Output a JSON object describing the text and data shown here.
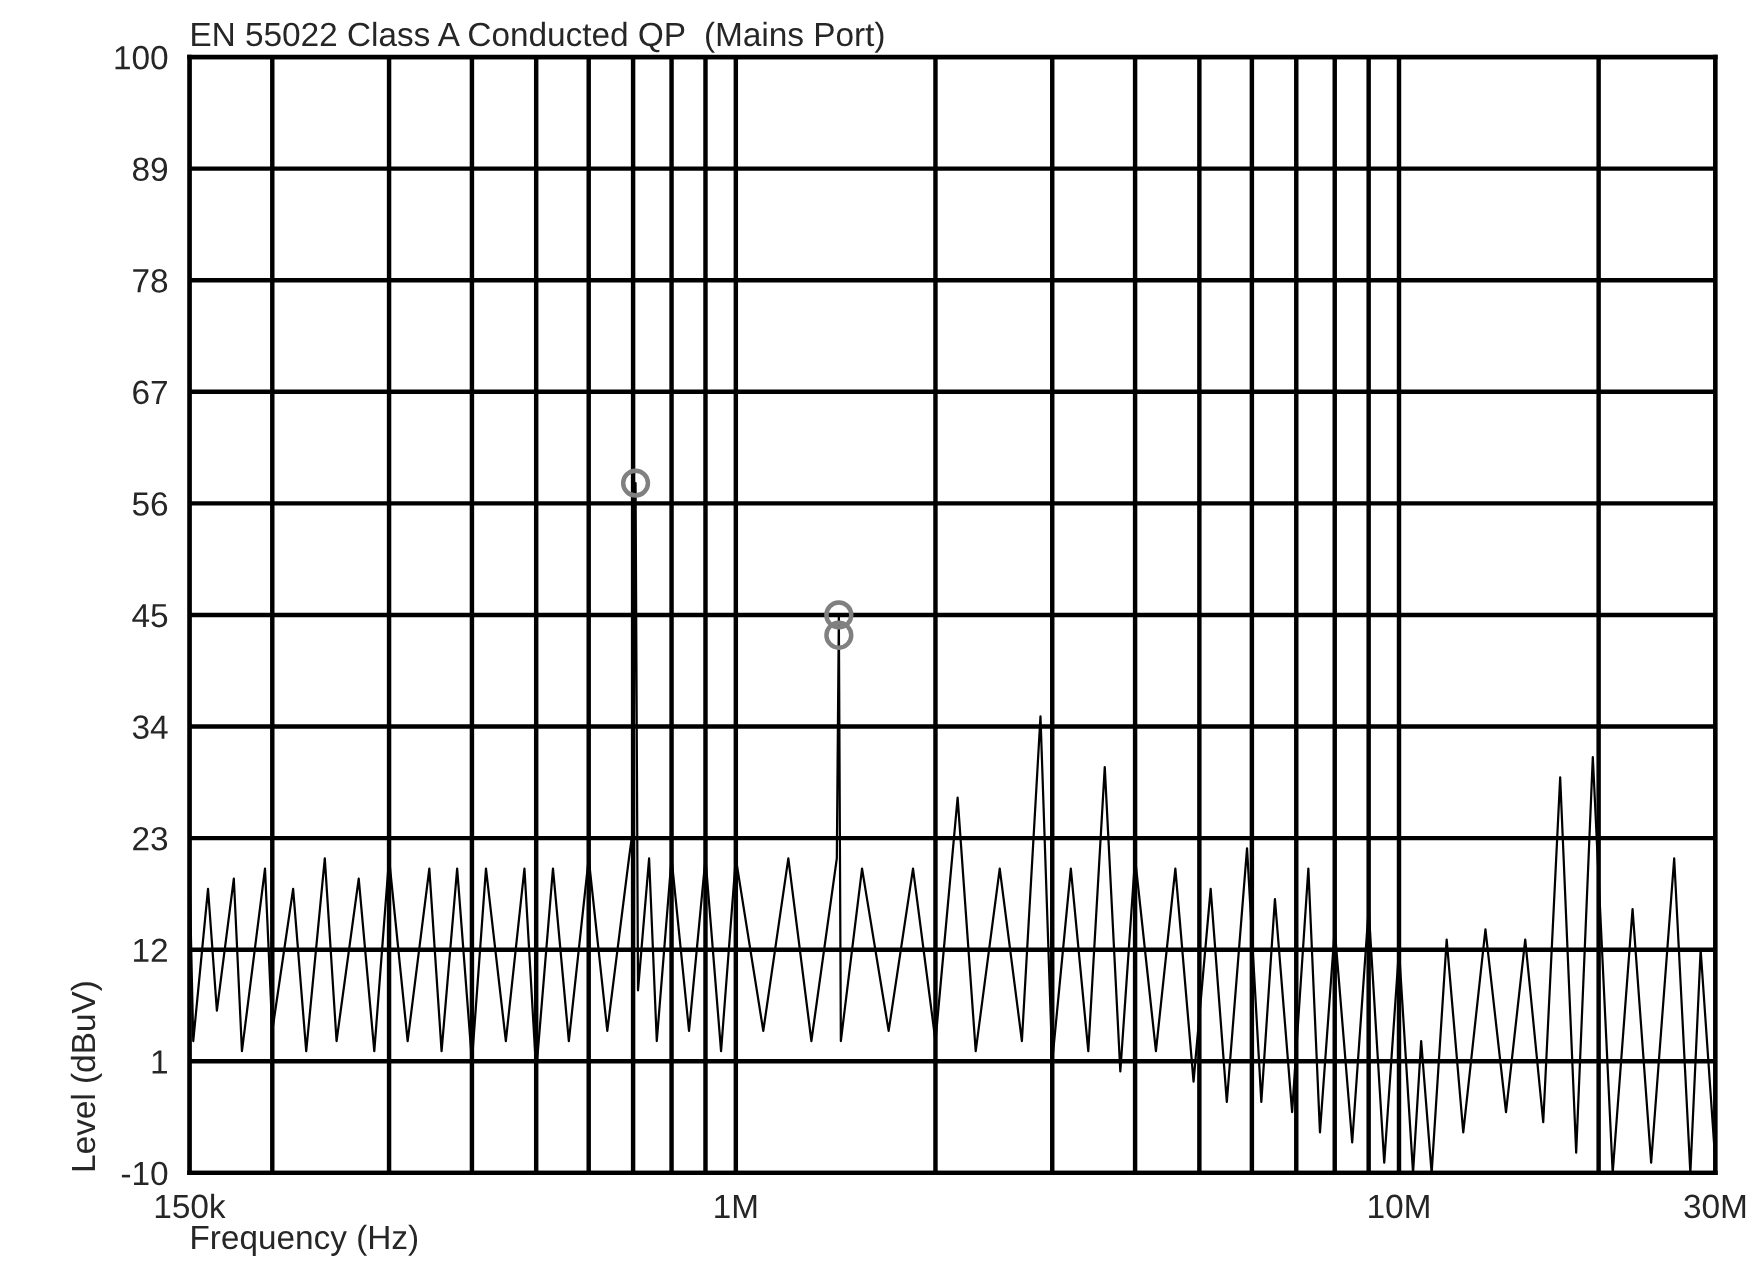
{
  "chart_data": {
    "type": "line",
    "title": "EN 55022 Class A Conducted QP  (Mains Port)",
    "xlabel": "Frequency (Hz)",
    "ylabel": "Level (dBuV)",
    "log": "x",
    "grid": true,
    "xlim": [
      150000,
      30000000
    ],
    "ylim": [
      -10,
      100
    ],
    "xticks": [
      {
        "value": 150000,
        "label": "150k"
      },
      {
        "value": 200000,
        "label": null
      },
      {
        "value": 300000,
        "label": null
      },
      {
        "value": 400000,
        "label": null
      },
      {
        "value": 500000,
        "label": null
      },
      {
        "value": 600000,
        "label": null
      },
      {
        "value": 700000,
        "label": null
      },
      {
        "value": 800000,
        "label": null
      },
      {
        "value": 900000,
        "label": null
      },
      {
        "value": 1000000,
        "label": "1M"
      },
      {
        "value": 2000000,
        "label": null
      },
      {
        "value": 3000000,
        "label": null
      },
      {
        "value": 4000000,
        "label": null
      },
      {
        "value": 5000000,
        "label": null
      },
      {
        "value": 6000000,
        "label": null
      },
      {
        "value": 7000000,
        "label": null
      },
      {
        "value": 8000000,
        "label": null
      },
      {
        "value": 9000000,
        "label": null
      },
      {
        "value": 10000000,
        "label": "10M"
      },
      {
        "value": 20000000,
        "label": null
      },
      {
        "value": 30000000,
        "label": "30M"
      }
    ],
    "yticks": [
      -10,
      1,
      12,
      23,
      34,
      45,
      56,
      67,
      78,
      89,
      100
    ],
    "series": [
      {
        "color": "#000000",
        "marker": "none",
        "line_style": "solid",
        "x": [
          150000,
          152000,
          160000,
          165000,
          175000,
          180000,
          195000,
          200000,
          215000,
          225000,
          240000,
          250000,
          270000,
          285000,
          300000,
          320000,
          345000,
          360000,
          380000,
          400000,
          420000,
          450000,
          480000,
          500000,
          530000,
          560000,
          600000,
          640000,
          690000,
          700000,
          706000,
          712000,
          740000,
          760000,
          800000,
          850000,
          900000,
          950000,
          1000000,
          1100000,
          1200000,
          1300000,
          1420000,
          1430000,
          1440000,
          1550000,
          1700000,
          1850000,
          2000000,
          2160000,
          2300000,
          2500000,
          2700000,
          2880000,
          3000000,
          3200000,
          3400000,
          3600000,
          3800000,
          4000000,
          4300000,
          4600000,
          4900000,
          5200000,
          5500000,
          5900000,
          6200000,
          6500000,
          6900000,
          7300000,
          7600000,
          8000000,
          8500000,
          9000000,
          9500000,
          10000000,
          10500000,
          10800000,
          11200000,
          11800000,
          12500000,
          13500000,
          14500000,
          15500000,
          16500000,
          17500000,
          18500000,
          19600000,
          21000000,
          22500000,
          24000000,
          26000000,
          27500000,
          28500000,
          30000000
        ],
        "values": [
          20,
          3,
          18,
          6,
          19,
          2,
          20,
          4,
          18,
          2,
          21,
          3,
          19,
          2,
          21,
          3,
          20,
          2,
          20,
          1,
          20,
          3,
          20,
          0,
          20,
          3,
          21,
          4,
          21,
          24,
          58,
          8,
          21,
          3,
          21,
          4,
          21,
          2,
          21,
          4,
          21,
          3,
          21,
          45,
          3,
          20,
          4,
          20,
          3,
          27,
          2,
          20,
          3,
          35,
          1,
          20,
          2,
          30,
          0,
          21,
          2,
          20,
          -1,
          18,
          -3,
          22,
          -3,
          17,
          -4,
          20,
          -6,
          14,
          -7,
          16,
          -9,
          12,
          -10,
          3,
          -10,
          13,
          -6,
          14,
          -4,
          13,
          -5,
          29,
          -8,
          31,
          -10,
          16,
          -9,
          21,
          -10,
          12,
          -9
        ]
      },
      {
        "type": "scatter",
        "color": "#808080",
        "marker": "circle",
        "x": [
          706000,
          1430000,
          1430000
        ],
        "values": [
          58,
          45,
          43
        ]
      }
    ]
  }
}
